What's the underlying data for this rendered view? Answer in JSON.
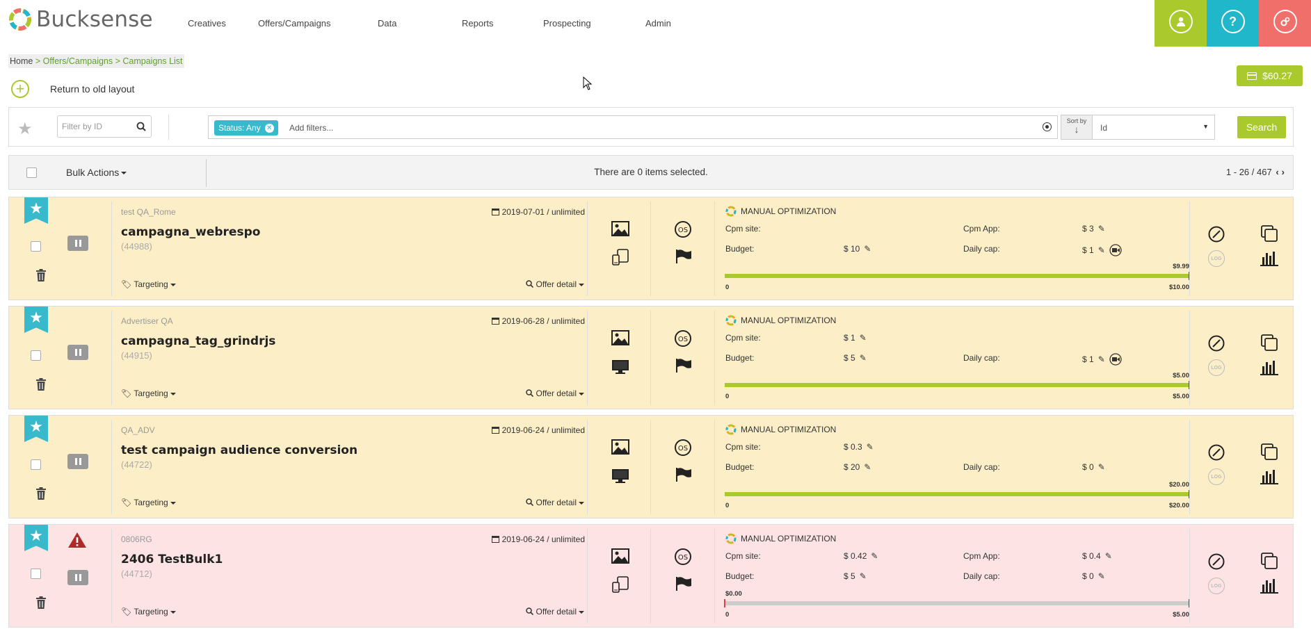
{
  "brand": {
    "name": "Bucksense"
  },
  "nav": [
    "Creatives",
    "Offers/Campaigns",
    "Data",
    "Reports",
    "Prospecting",
    "Admin"
  ],
  "header_buttons": [
    {
      "icon": "user-icon",
      "color": "#a9c92c"
    },
    {
      "icon": "help-icon",
      "color": "#1fb7c9"
    },
    {
      "icon": "settings-icon",
      "color": "#f16f6a"
    }
  ],
  "breadcrumb": {
    "home": "Home",
    "sep": ">",
    "section": "Offers/Campaigns > Campaigns List"
  },
  "return_label": "Return to old layout",
  "balance": "$60.27",
  "filter": {
    "id_placeholder": "Filter by ID",
    "status_chip": "Status: Any",
    "add_filters_placeholder": "Add filters...",
    "sort_label": "Sort by",
    "sort_value": "Id",
    "search_label": "Search"
  },
  "bulk": {
    "label": "Bulk Actions",
    "selected_info": "There are 0 items selected.",
    "pager": "1 - 26 / 467"
  },
  "common": {
    "targeting": "Targeting",
    "offer_detail": "Offer detail",
    "optimization": "MANUAL OPTIMIZATION",
    "cpm_site": "Cpm site:",
    "cpm_app": "Cpm App:",
    "budget": "Budget:",
    "daily_cap": "Daily cap:",
    "zero": "0",
    "log": "LOG"
  },
  "campaigns": [
    {
      "advertiser": "test QA_Rome",
      "date": "2019-07-01 / unlimited",
      "name": "campagna_webrespo",
      "id": "(44988)",
      "device": "multi-device",
      "cpm_site": "",
      "cpm_app": "$ 3",
      "budget": "$ 10",
      "daily_cap": "$ 1",
      "spent_label": "$9.99",
      "total_label": "$10.00",
      "progress": 1.0,
      "status": "paused",
      "warning": false,
      "bg": "#fcefc7"
    },
    {
      "advertiser": "Advertiser QA",
      "date": "2019-06-28 / unlimited",
      "name": "campagna_tag_grindrjs",
      "id": "(44915)",
      "device": "desktop",
      "cpm_site": "$ 1",
      "cpm_app": "",
      "budget": "$ 5",
      "daily_cap": "$ 1",
      "spent_label": "$5.00",
      "total_label": "$5.00",
      "progress": 1.0,
      "status": "paused",
      "warning": false,
      "bg": "#fcefc7"
    },
    {
      "advertiser": "QA_ADV",
      "date": "2019-06-24 / unlimited",
      "name": "test campaign audience conversion",
      "id": "(44722)",
      "device": "desktop",
      "cpm_site": "$ 0.3",
      "cpm_app": "",
      "budget": "$ 20",
      "daily_cap": "$ 0",
      "spent_label": "$20.00",
      "total_label": "$20.00",
      "progress": 1.0,
      "status": "paused",
      "warning": false,
      "bg": "#fcefc7"
    },
    {
      "advertiser": "0806RG",
      "date": "2019-06-24 / unlimited",
      "name": "2406 TestBulk1",
      "id": "(44712)",
      "device": "multi-device",
      "cpm_site": "$ 0.42",
      "cpm_app": "$ 0.4",
      "budget": "$ 5",
      "daily_cap": "$ 0",
      "spent_label": "$0.00",
      "total_label": "$5.00",
      "progress": 0.0,
      "status": "paused",
      "warning": true,
      "bg": "#fde3e3"
    }
  ]
}
